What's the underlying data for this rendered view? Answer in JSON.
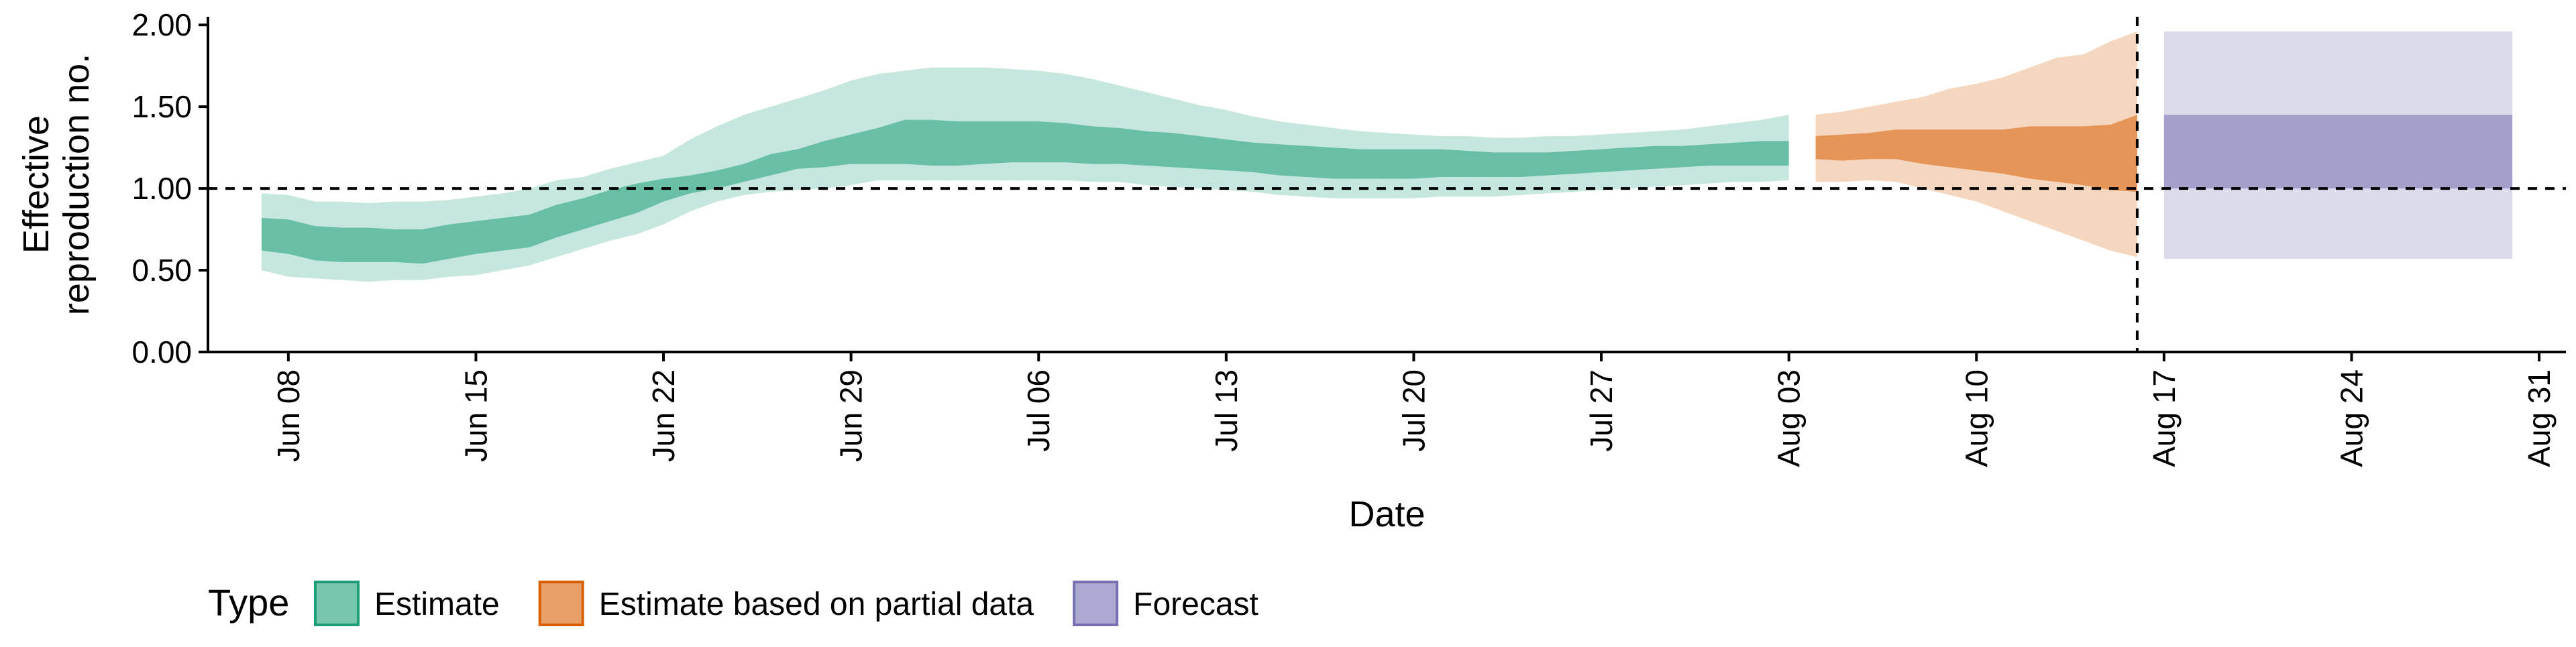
{
  "chart_data": {
    "type": "area",
    "xlabel": "Date",
    "ylabel_lines": [
      "Effective",
      "reproduction no."
    ],
    "x_type": "date",
    "xlim": [
      "2020-06-05",
      "2020-09-01"
    ],
    "ylim": [
      0,
      2.05
    ],
    "yticks": [
      0,
      0.5,
      1,
      1.5,
      2
    ],
    "ytick_labels": [
      "0.00",
      "0.50",
      "1.00",
      "1.50",
      "2.00"
    ],
    "xticks": [
      "2020-06-08",
      "2020-06-15",
      "2020-06-22",
      "2020-06-29",
      "2020-07-06",
      "2020-07-13",
      "2020-07-20",
      "2020-07-27",
      "2020-08-03",
      "2020-08-10",
      "2020-08-17",
      "2020-08-24",
      "2020-08-31"
    ],
    "xtick_labels": [
      "Jun 08",
      "Jun 15",
      "Jun 22",
      "Jun 29",
      "Jul 06",
      "Jul 13",
      "Jul 20",
      "Jul 27",
      "Aug 03",
      "Aug 10",
      "Aug 17",
      "Aug 24",
      "Aug 31"
    ],
    "reference_line": {
      "axis": "y",
      "value": 1,
      "style": "dashed"
    },
    "vertical_line": {
      "axis": "x",
      "value": "2020-08-16",
      "style": "dashed"
    },
    "legend": {
      "title": "Type",
      "placement": "bottom"
    },
    "series": [
      {
        "name": "Estimate",
        "color": "#1b9e77",
        "x": [
          "2020-06-07",
          "2020-06-08",
          "2020-06-09",
          "2020-06-10",
          "2020-06-11",
          "2020-06-12",
          "2020-06-13",
          "2020-06-14",
          "2020-06-15",
          "2020-06-16",
          "2020-06-17",
          "2020-06-18",
          "2020-06-19",
          "2020-06-20",
          "2020-06-21",
          "2020-06-22",
          "2020-06-23",
          "2020-06-24",
          "2020-06-25",
          "2020-06-26",
          "2020-06-27",
          "2020-06-28",
          "2020-06-29",
          "2020-06-30",
          "2020-07-01",
          "2020-07-02",
          "2020-07-03",
          "2020-07-04",
          "2020-07-05",
          "2020-07-06",
          "2020-07-07",
          "2020-07-08",
          "2020-07-09",
          "2020-07-10",
          "2020-07-11",
          "2020-07-12",
          "2020-07-13",
          "2020-07-14",
          "2020-07-15",
          "2020-07-16",
          "2020-07-17",
          "2020-07-18",
          "2020-07-19",
          "2020-07-20",
          "2020-07-21",
          "2020-07-22",
          "2020-07-23",
          "2020-07-24",
          "2020-07-25",
          "2020-07-26",
          "2020-07-27",
          "2020-07-28",
          "2020-07-29",
          "2020-07-30",
          "2020-07-31",
          "2020-08-01",
          "2020-08-02",
          "2020-08-03"
        ],
        "inner_lower": [
          0.62,
          0.6,
          0.56,
          0.55,
          0.55,
          0.55,
          0.54,
          0.57,
          0.6,
          0.62,
          0.64,
          0.7,
          0.75,
          0.8,
          0.85,
          0.92,
          0.97,
          1.0,
          1.04,
          1.08,
          1.12,
          1.13,
          1.15,
          1.15,
          1.15,
          1.14,
          1.14,
          1.15,
          1.16,
          1.16,
          1.16,
          1.15,
          1.15,
          1.14,
          1.13,
          1.12,
          1.11,
          1.1,
          1.08,
          1.07,
          1.06,
          1.06,
          1.06,
          1.06,
          1.07,
          1.07,
          1.07,
          1.07,
          1.08,
          1.09,
          1.1,
          1.11,
          1.12,
          1.13,
          1.14,
          1.14,
          1.14,
          1.14
        ],
        "inner_upper": [
          0.82,
          0.81,
          0.77,
          0.76,
          0.76,
          0.75,
          0.75,
          0.78,
          0.8,
          0.82,
          0.84,
          0.9,
          0.94,
          0.99,
          1.03,
          1.06,
          1.08,
          1.11,
          1.15,
          1.21,
          1.24,
          1.29,
          1.33,
          1.37,
          1.42,
          1.42,
          1.41,
          1.41,
          1.41,
          1.41,
          1.4,
          1.38,
          1.37,
          1.35,
          1.34,
          1.32,
          1.3,
          1.28,
          1.27,
          1.26,
          1.25,
          1.24,
          1.24,
          1.24,
          1.24,
          1.23,
          1.22,
          1.22,
          1.22,
          1.23,
          1.24,
          1.25,
          1.26,
          1.26,
          1.27,
          1.28,
          1.29,
          1.29
        ],
        "outer_lower": [
          0.5,
          0.46,
          0.45,
          0.44,
          0.43,
          0.44,
          0.44,
          0.46,
          0.47,
          0.5,
          0.53,
          0.58,
          0.63,
          0.68,
          0.72,
          0.78,
          0.86,
          0.92,
          0.96,
          0.98,
          0.99,
          1.0,
          1.02,
          1.05,
          1.05,
          1.05,
          1.05,
          1.05,
          1.05,
          1.05,
          1.05,
          1.04,
          1.04,
          1.02,
          1.01,
          1.0,
          0.99,
          0.98,
          0.96,
          0.95,
          0.94,
          0.94,
          0.94,
          0.94,
          0.95,
          0.95,
          0.95,
          0.96,
          0.97,
          0.98,
          0.99,
          1.0,
          1.01,
          1.02,
          1.03,
          1.04,
          1.04,
          1.05
        ],
        "outer_upper": [
          0.97,
          0.96,
          0.92,
          0.92,
          0.91,
          0.92,
          0.92,
          0.93,
          0.95,
          0.97,
          1.0,
          1.05,
          1.07,
          1.12,
          1.16,
          1.2,
          1.3,
          1.38,
          1.45,
          1.5,
          1.55,
          1.6,
          1.66,
          1.7,
          1.72,
          1.74,
          1.74,
          1.74,
          1.73,
          1.72,
          1.7,
          1.67,
          1.63,
          1.59,
          1.55,
          1.51,
          1.48,
          1.44,
          1.41,
          1.39,
          1.37,
          1.35,
          1.34,
          1.33,
          1.32,
          1.32,
          1.31,
          1.31,
          1.32,
          1.32,
          1.33,
          1.34,
          1.35,
          1.36,
          1.38,
          1.4,
          1.42,
          1.45
        ]
      },
      {
        "name": "Estimate based on partial data",
        "color": "#d95f02",
        "x": [
          "2020-08-04",
          "2020-08-05",
          "2020-08-06",
          "2020-08-07",
          "2020-08-08",
          "2020-08-09",
          "2020-08-10",
          "2020-08-11",
          "2020-08-12",
          "2020-08-13",
          "2020-08-14",
          "2020-08-15",
          "2020-08-16"
        ],
        "inner_lower": [
          1.18,
          1.17,
          1.18,
          1.18,
          1.15,
          1.13,
          1.11,
          1.09,
          1.06,
          1.04,
          1.02,
          0.99,
          0.98
        ],
        "inner_upper": [
          1.32,
          1.33,
          1.34,
          1.36,
          1.36,
          1.36,
          1.36,
          1.36,
          1.38,
          1.38,
          1.38,
          1.39,
          1.45
        ],
        "outer_lower": [
          1.04,
          1.04,
          1.05,
          1.04,
          1.0,
          0.96,
          0.92,
          0.86,
          0.8,
          0.74,
          0.68,
          0.62,
          0.58
        ],
        "outer_upper": [
          1.45,
          1.47,
          1.5,
          1.53,
          1.56,
          1.61,
          1.64,
          1.68,
          1.74,
          1.8,
          1.82,
          1.9,
          1.96
        ]
      },
      {
        "name": "Forecast",
        "color": "#7570b3",
        "x": [
          "2020-08-17",
          "2020-08-30"
        ],
        "inner_lower": [
          1.0,
          1.0
        ],
        "inner_upper": [
          1.45,
          1.45
        ],
        "outer_lower": [
          0.57,
          0.57
        ],
        "outer_upper": [
          1.96,
          1.96
        ]
      }
    ]
  }
}
